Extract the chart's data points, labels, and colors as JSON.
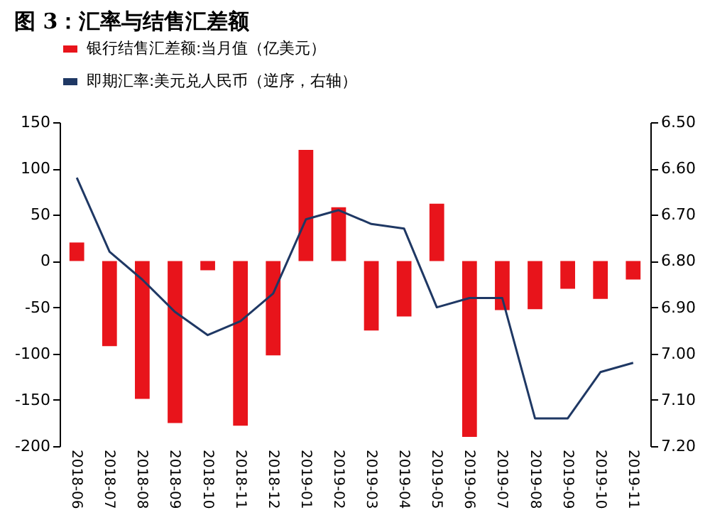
{
  "chart_data": {
    "type": "bar",
    "title": "图 3：汇率与结售汇差额",
    "categories": [
      "2018-06",
      "2018-07",
      "2018-08",
      "2018-09",
      "2018-10",
      "2018-11",
      "2018-12",
      "2019-01",
      "2019-02",
      "2019-03",
      "2019-04",
      "2019-05",
      "2019-06",
      "2019-07",
      "2019-08",
      "2019-09",
      "2019-10",
      "2019-11"
    ],
    "series": [
      {
        "name": "银行结售汇差额:当月值（亿美元）",
        "color": "#e8141b",
        "values": [
          20,
          -92,
          -149,
          -175,
          -10,
          -178,
          -102,
          120,
          58,
          -75,
          -60,
          62,
          -190,
          -53,
          -52,
          -30,
          -41,
          -20
        ]
      },
      {
        "name": "即期汇率:美元兑人民币（逆序，右轴）",
        "type": "line",
        "axis": "y2",
        "color": "#1f3864",
        "values": [
          6.62,
          6.78,
          6.84,
          6.91,
          6.96,
          6.93,
          6.87,
          6.71,
          6.69,
          6.72,
          6.73,
          6.9,
          6.88,
          6.88,
          7.14,
          7.14,
          7.04,
          7.02
        ]
      }
    ],
    "ylim": [
      -200,
      150
    ],
    "yticks": [
      -200,
      -150,
      -100,
      -50,
      0,
      50,
      100,
      150
    ],
    "y2lim": [
      7.2,
      6.5
    ],
    "y2ticks": [
      {
        "value": 6.5,
        "label": "6.50"
      },
      {
        "value": 6.6,
        "label": "6.60"
      },
      {
        "value": 6.7,
        "label": "6.70"
      },
      {
        "value": 6.8,
        "label": "6.80"
      },
      {
        "value": 6.9,
        "label": "6.90"
      },
      {
        "value": 7.0,
        "label": "7.00"
      },
      {
        "value": 7.1,
        "label": "7.10"
      },
      {
        "value": 7.2,
        "label": "7.20"
      }
    ],
    "legend": "top",
    "grid": false
  }
}
